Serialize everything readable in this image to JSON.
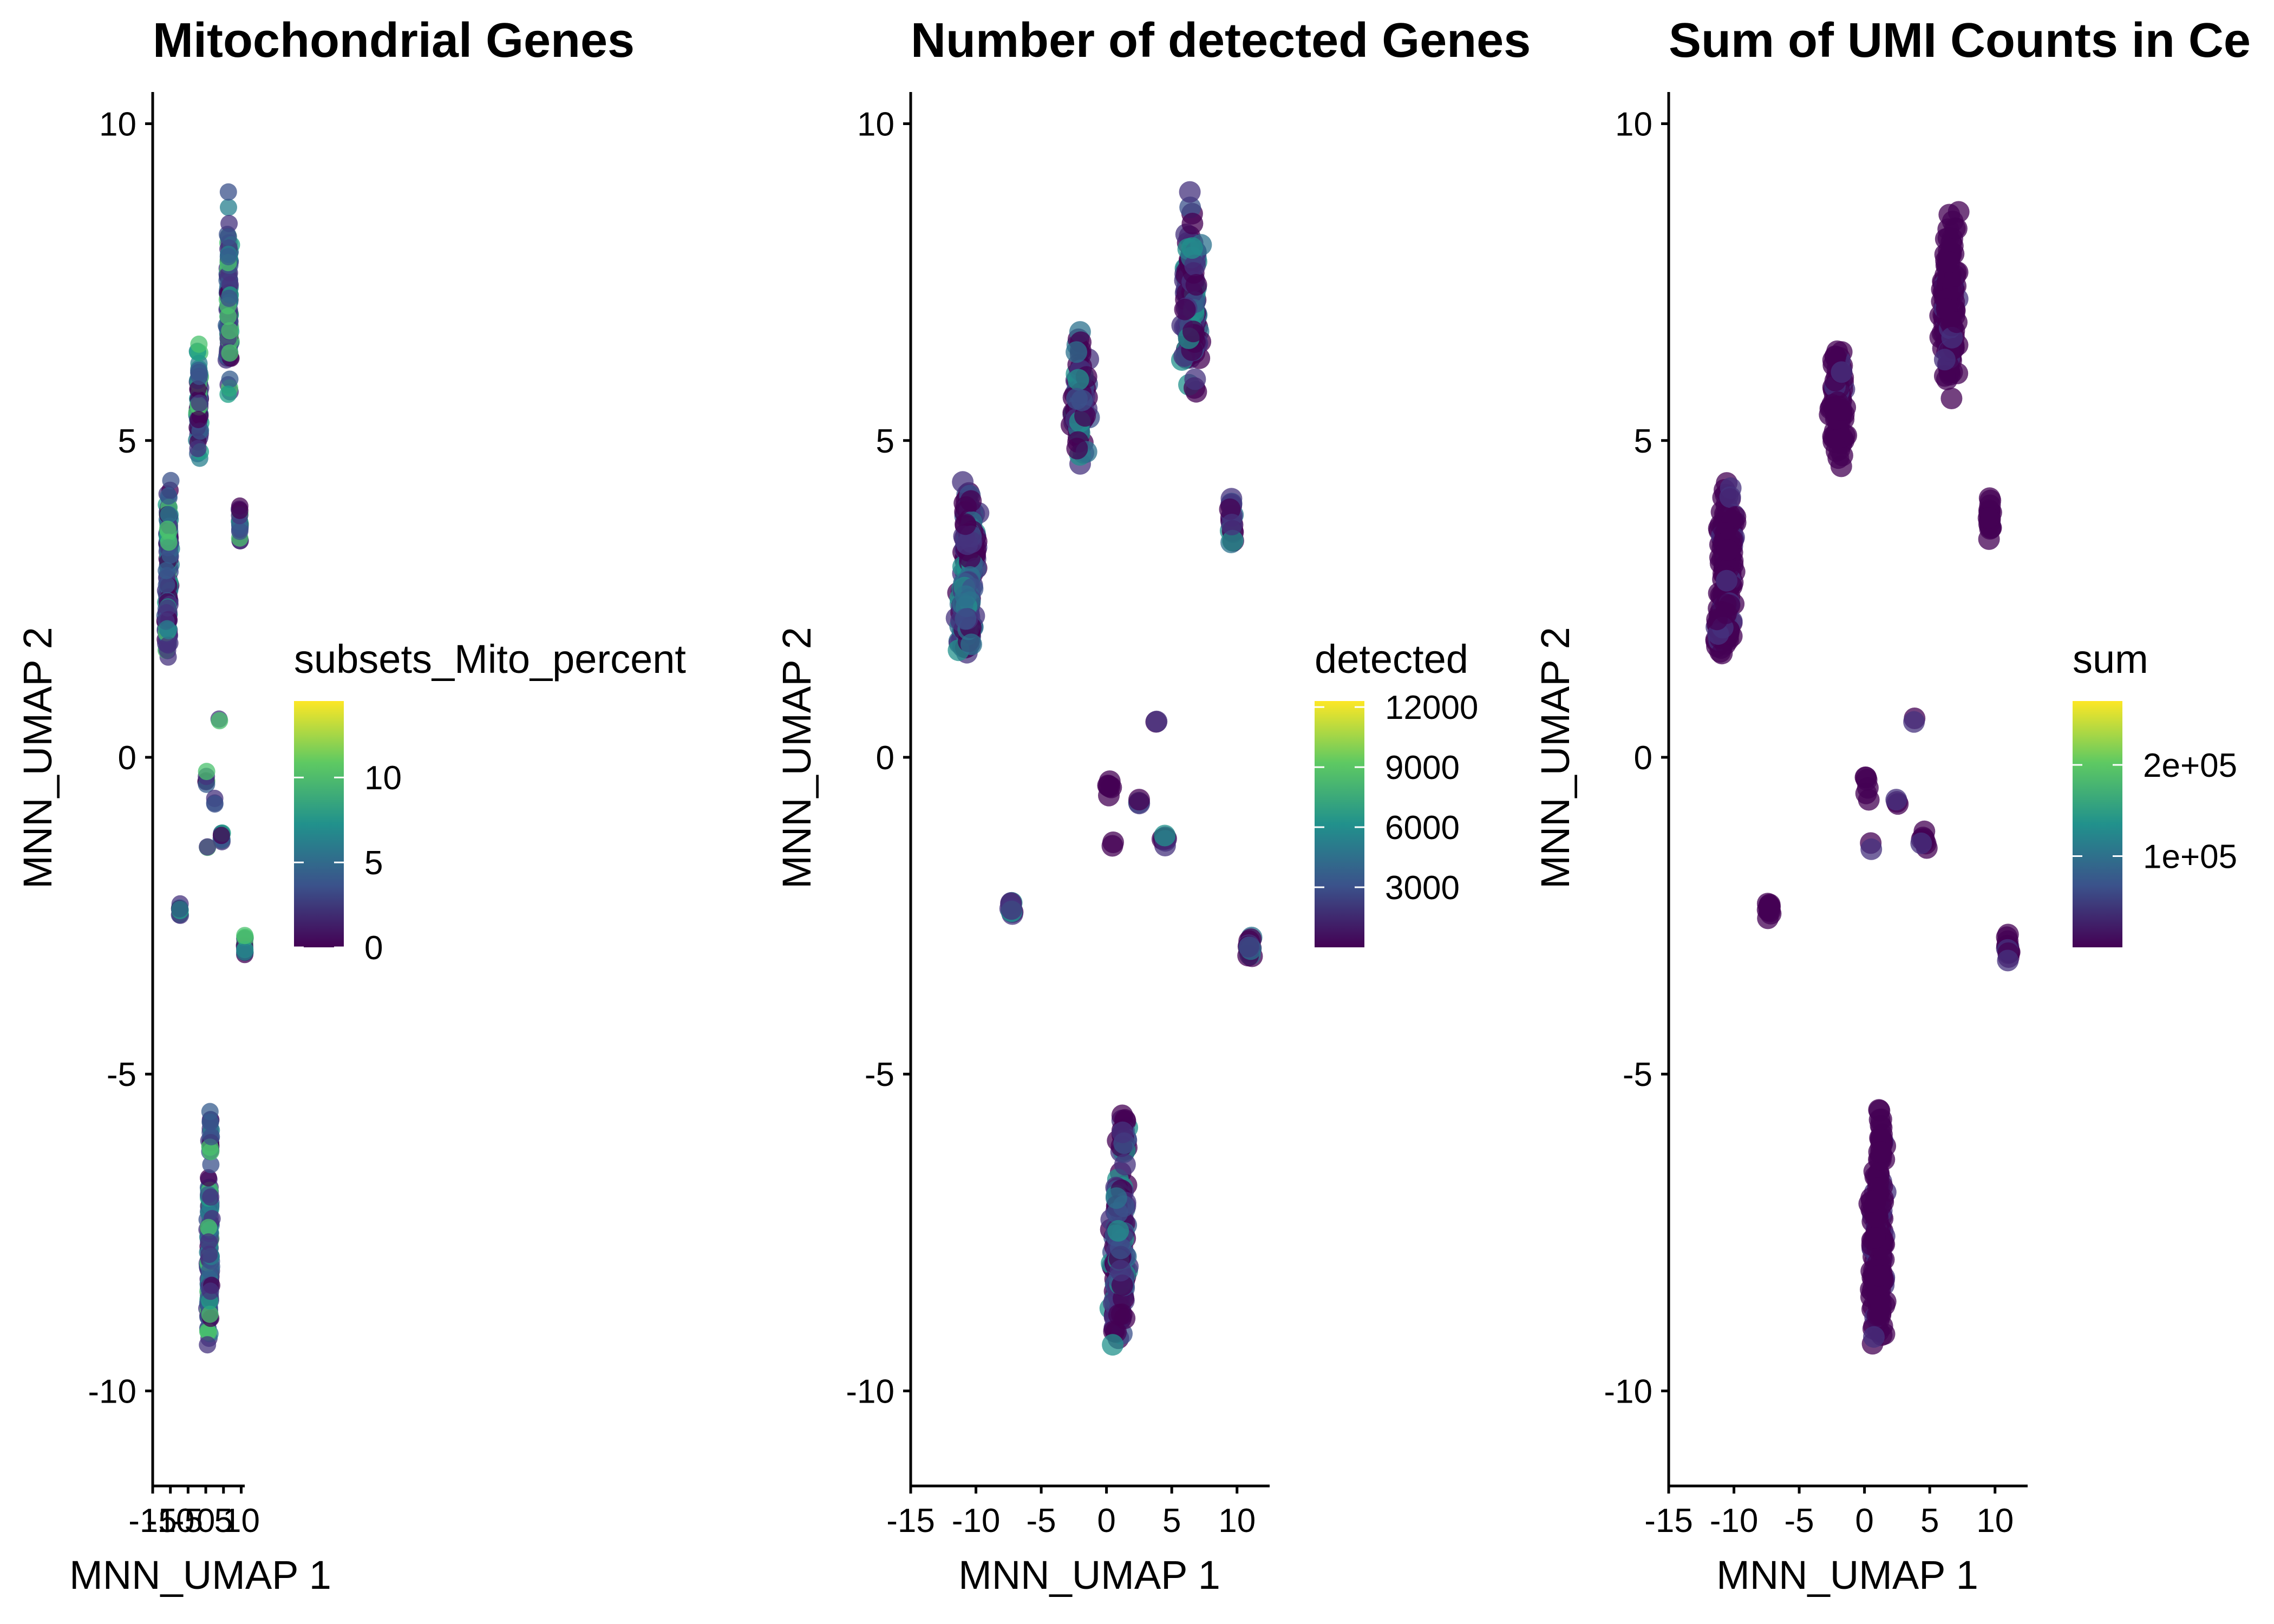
{
  "chart_data": [
    {
      "type": "scatter",
      "title": "Mitochondrial Genes",
      "xlabel": "MNN_UMAP 1",
      "ylabel": "MNN_UMAP 2",
      "xlim": [
        -15,
        11
      ],
      "ylim": [
        -11.5,
        10.5
      ],
      "x_ticks": [
        -15,
        -10,
        -5,
        0,
        5,
        10
      ],
      "x_tick_labels": [
        "-15",
        "-10",
        "-5",
        "0",
        "5",
        "10"
      ],
      "y_ticks": [
        -10,
        -5,
        0,
        5,
        10
      ],
      "y_tick_labels": [
        "-10",
        "-5",
        "0",
        "5",
        "10"
      ],
      "grid": false,
      "legend": {
        "title": "subsets_Mito_percent",
        "placement": "right",
        "range": [
          0,
          14.5
        ],
        "ticks": [
          0,
          5,
          10
        ],
        "tick_labels": [
          "0",
          "5",
          "10"
        ]
      },
      "colormap": "viridis",
      "clusters": [
        {
          "x": -10.5,
          "y": 3.4,
          "count": 120
        },
        {
          "x": -10.8,
          "y": 2.2,
          "count": 90
        },
        {
          "x": -2.0,
          "y": 5.6,
          "count": 90
        },
        {
          "x": 6.5,
          "y": 7.2,
          "count": 150
        },
        {
          "x": 9.6,
          "y": 3.8,
          "count": 18
        },
        {
          "x": 0.2,
          "y": -0.4,
          "count": 6
        },
        {
          "x": 3.8,
          "y": 0.6,
          "count": 2
        },
        {
          "x": 2.5,
          "y": -0.7,
          "count": 3
        },
        {
          "x": 4.5,
          "y": -1.3,
          "count": 8
        },
        {
          "x": 0.5,
          "y": -1.4,
          "count": 2
        },
        {
          "x": -7.3,
          "y": -2.4,
          "count": 10
        },
        {
          "x": 11.0,
          "y": -3.0,
          "count": 14
        },
        {
          "x": 1.0,
          "y": -7.8,
          "count": 160
        },
        {
          "x": 1.3,
          "y": -6.0,
          "count": 20
        }
      ]
    },
    {
      "type": "scatter",
      "title": "Number of detected Genes",
      "xlabel": "MNN_UMAP 1",
      "ylabel": "MNN_UMAP 2",
      "xlim": [
        -15,
        12.5
      ],
      "ylim": [
        -11.5,
        10.5
      ],
      "x_ticks": [
        -15,
        -10,
        -5,
        0,
        5,
        10
      ],
      "x_tick_labels": [
        "-15",
        "-10",
        "-5",
        "0",
        "5",
        "10"
      ],
      "y_ticks": [
        -10,
        -5,
        0,
        5,
        10
      ],
      "y_tick_labels": [
        "-10",
        "-5",
        "0",
        "5",
        "10"
      ],
      "grid": false,
      "legend": {
        "title": "detected",
        "placement": "right",
        "range": [
          0,
          12300
        ],
        "ticks": [
          3000,
          6000,
          9000,
          12000
        ],
        "tick_labels": [
          "3000",
          "6000",
          "9000",
          "12000"
        ]
      },
      "colormap": "viridis",
      "clusters": [
        {
          "x": -10.5,
          "y": 3.4,
          "count": 120
        },
        {
          "x": -10.8,
          "y": 2.2,
          "count": 90
        },
        {
          "x": -2.0,
          "y": 5.6,
          "count": 90
        },
        {
          "x": 6.5,
          "y": 7.2,
          "count": 150
        },
        {
          "x": 9.6,
          "y": 3.8,
          "count": 18
        },
        {
          "x": 0.2,
          "y": -0.4,
          "count": 6
        },
        {
          "x": 3.8,
          "y": 0.6,
          "count": 2
        },
        {
          "x": 2.5,
          "y": -0.7,
          "count": 3
        },
        {
          "x": 4.5,
          "y": -1.3,
          "count": 8
        },
        {
          "x": 0.5,
          "y": -1.4,
          "count": 2
        },
        {
          "x": -7.3,
          "y": -2.4,
          "count": 10
        },
        {
          "x": 11.0,
          "y": -3.0,
          "count": 14
        },
        {
          "x": 1.0,
          "y": -7.8,
          "count": 160
        },
        {
          "x": 1.3,
          "y": -6.0,
          "count": 20
        }
      ]
    },
    {
      "type": "scatter",
      "title": "Sum of UMI Counts in Ce",
      "xlabel": "MNN_UMAP 1",
      "ylabel": "MNN_UMAP 2",
      "xlim": [
        -15,
        12.5
      ],
      "ylim": [
        -11.5,
        10.5
      ],
      "x_ticks": [
        -15,
        -10,
        -5,
        0,
        5,
        10
      ],
      "x_tick_labels": [
        "-15",
        "-10",
        "-5",
        "0",
        "5",
        "10"
      ],
      "y_ticks": [
        -10,
        -5,
        0,
        5,
        10
      ],
      "y_tick_labels": [
        "-10",
        "-5",
        "0",
        "5",
        "10"
      ],
      "grid": false,
      "legend": {
        "title": "sum",
        "placement": "right",
        "range": [
          0,
          270000
        ],
        "ticks": [
          100000,
          200000
        ],
        "tick_labels": [
          "1e+05",
          "2e+05"
        ]
      },
      "colormap": "viridis",
      "clusters": [
        {
          "x": -10.5,
          "y": 3.4,
          "count": 120
        },
        {
          "x": -10.8,
          "y": 2.2,
          "count": 90
        },
        {
          "x": -2.0,
          "y": 5.6,
          "count": 90
        },
        {
          "x": 6.5,
          "y": 7.2,
          "count": 150
        },
        {
          "x": 9.6,
          "y": 3.8,
          "count": 18
        },
        {
          "x": 0.2,
          "y": -0.4,
          "count": 6
        },
        {
          "x": 3.8,
          "y": 0.6,
          "count": 2
        },
        {
          "x": 2.5,
          "y": -0.7,
          "count": 3
        },
        {
          "x": 4.5,
          "y": -1.3,
          "count": 8
        },
        {
          "x": 0.5,
          "y": -1.4,
          "count": 2
        },
        {
          "x": -7.3,
          "y": -2.4,
          "count": 10
        },
        {
          "x": 11.0,
          "y": -3.0,
          "count": 14
        },
        {
          "x": 1.0,
          "y": -7.8,
          "count": 160
        },
        {
          "x": 1.3,
          "y": -6.0,
          "count": 20
        }
      ]
    }
  ]
}
